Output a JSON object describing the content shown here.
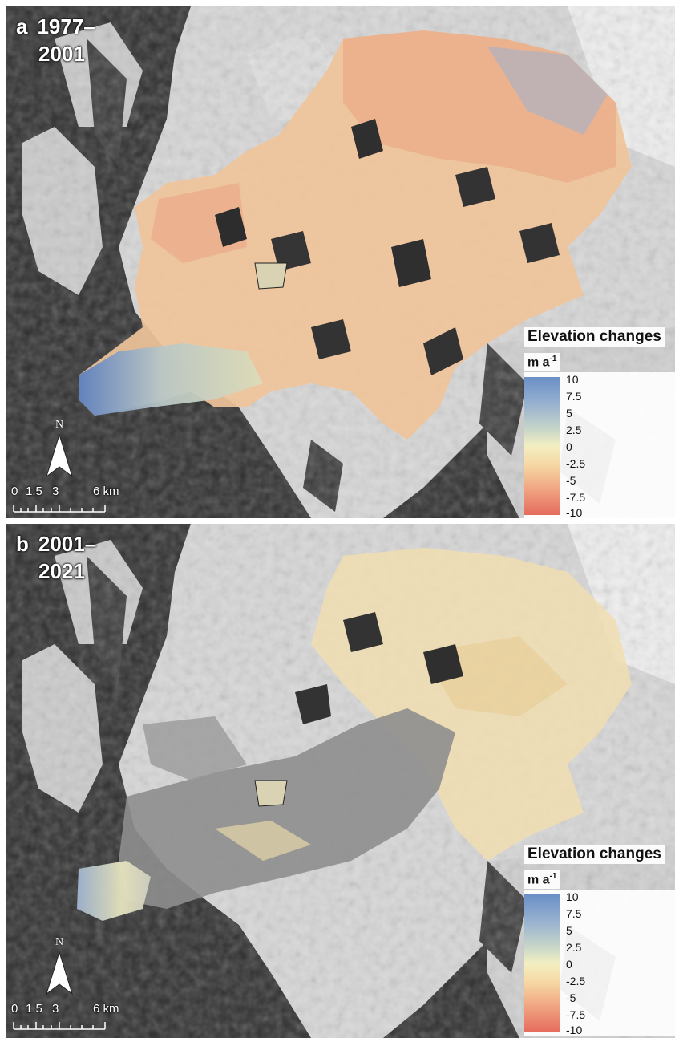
{
  "panels": [
    {
      "letter": "a",
      "period_line1": "1977–",
      "period_line2": "2001",
      "north_label": "N",
      "scale_labels": [
        "0",
        "1.5",
        "3",
        "6 km"
      ],
      "legend_title": "Elevation changes",
      "legend_unit": "m a",
      "legend_unit_exp": "-1",
      "legend_ticks": [
        "10",
        "7.5",
        "5",
        "2.5",
        "0",
        "-2.5",
        "-5",
        "-7.5",
        "-10"
      ]
    },
    {
      "letter": "b",
      "period_line1": "2001–",
      "period_line2": "2021",
      "north_label": "N",
      "scale_labels": [
        "0",
        "1.5",
        "3",
        "6 km"
      ],
      "legend_title": "Elevation changes",
      "legend_unit": "m a",
      "legend_unit_exp": "-1",
      "legend_ticks": [
        "10",
        "7.5",
        "5",
        "2.5",
        "0",
        "-2.5",
        "-5",
        "-7.5",
        "-10"
      ]
    }
  ],
  "colors": {
    "positive": "#6a8fc7",
    "neutral": "#f3efc2",
    "negative": "#e56b5d",
    "terrain_dark": "#2b2b2b",
    "snow": "#e9e9e9"
  }
}
